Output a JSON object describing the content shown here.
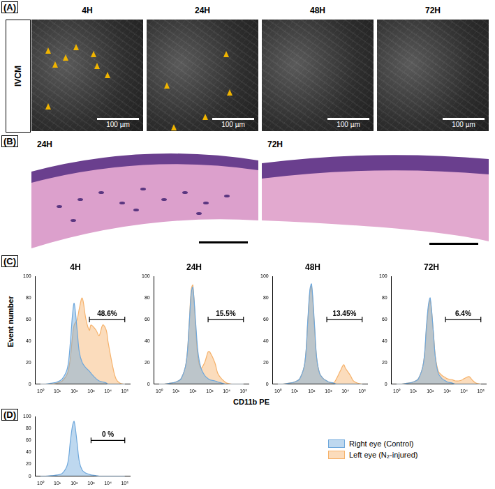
{
  "figure": {
    "panels": {
      "A": {
        "label": "(A)",
        "row_label": "IVCM",
        "columns": [
          "4H",
          "24H",
          "48H",
          "72H"
        ],
        "scale_bar": "100 µm"
      },
      "B": {
        "label": "(B)",
        "images": [
          "24H",
          "72H"
        ]
      },
      "C": {
        "label": "(C)"
      },
      "D": {
        "label": "(D)"
      }
    },
    "y_axis_label": "Event number",
    "x_axis_label": "CD11b PE"
  },
  "chart_data": [
    {
      "type": "line",
      "title": "4H",
      "log": "x",
      "grid": false,
      "x": [
        1,
        2,
        5,
        10,
        20,
        40,
        60,
        80,
        100,
        150,
        200,
        300,
        500,
        800,
        1000,
        2000,
        3000,
        5000,
        8000,
        10000,
        20000,
        30000,
        50000,
        100000
      ],
      "xlim": [
        0.5,
        200000
      ],
      "xticks": [
        {
          "value": 1,
          "label": "10⁰"
        },
        {
          "value": 10,
          "label": "10¹"
        },
        {
          "value": 100,
          "label": "10²"
        },
        {
          "value": 1000,
          "label": "10³"
        },
        {
          "value": 10000,
          "label": "10⁴"
        },
        {
          "value": 100000,
          "label": "10⁵"
        }
      ],
      "ylim": [
        0,
        100
      ],
      "yticks": [
        0,
        20,
        40,
        60,
        80,
        100
      ],
      "series": [
        {
          "name": "Right eye (Control)",
          "color": "#6fa8dc",
          "values": [
            0,
            0,
            1,
            2,
            5,
            15,
            40,
            65,
            75,
            50,
            30,
            20,
            15,
            12,
            10,
            5,
            3,
            2,
            1,
            0,
            0,
            0,
            0,
            0
          ]
        },
        {
          "name": "Left eye (N₂-injured)",
          "color": "#f6b26b",
          "values": [
            0,
            0,
            0,
            1,
            3,
            10,
            25,
            45,
            55,
            60,
            70,
            80,
            60,
            50,
            55,
            50,
            45,
            55,
            50,
            40,
            15,
            5,
            1,
            0
          ]
        }
      ],
      "gate": {
        "range": [
          800,
          100000
        ],
        "level": 60,
        "label": "48.6%"
      }
    },
    {
      "type": "line",
      "title": "24H",
      "log": "x",
      "grid": false,
      "x": [
        1,
        2,
        5,
        10,
        20,
        40,
        60,
        80,
        100,
        150,
        200,
        300,
        500,
        800,
        1000,
        2000,
        3000,
        5000,
        8000,
        10000,
        20000,
        30000,
        50000,
        100000
      ],
      "xlim": [
        0.5,
        200000
      ],
      "xticks": [
        {
          "value": 1,
          "label": "10⁰"
        },
        {
          "value": 10,
          "label": "10¹"
        },
        {
          "value": 100,
          "label": "10²"
        },
        {
          "value": 1000,
          "label": "10³"
        },
        {
          "value": 10000,
          "label": "10⁴"
        },
        {
          "value": 100000,
          "label": "10⁵"
        }
      ],
      "ylim": [
        0,
        100
      ],
      "yticks": [
        0,
        20,
        40,
        60,
        80,
        100
      ],
      "series": [
        {
          "name": "Right eye (Control)",
          "color": "#6fa8dc",
          "values": [
            0,
            0,
            1,
            2,
            5,
            20,
            55,
            85,
            90,
            55,
            30,
            15,
            8,
            5,
            4,
            3,
            2,
            1,
            0,
            0,
            0,
            0,
            0,
            0
          ]
        },
        {
          "name": "Left eye (N₂-injured)",
          "color": "#f6b26b",
          "values": [
            0,
            0,
            1,
            2,
            5,
            20,
            55,
            88,
            92,
            50,
            25,
            15,
            20,
            30,
            30,
            20,
            10,
            5,
            2,
            1,
            0,
            0,
            0,
            0
          ]
        }
      ],
      "gate": {
        "range": [
          800,
          100000
        ],
        "level": 60,
        "label": "15.5%"
      }
    },
    {
      "type": "line",
      "title": "48H",
      "log": "x",
      "grid": false,
      "x": [
        1,
        2,
        5,
        10,
        20,
        40,
        60,
        80,
        100,
        150,
        200,
        300,
        500,
        800,
        1000,
        2000,
        3000,
        5000,
        8000,
        10000,
        20000,
        30000,
        50000,
        100000
      ],
      "xlim": [
        0.5,
        200000
      ],
      "xticks": [
        {
          "value": 1,
          "label": "10⁰"
        },
        {
          "value": 10,
          "label": "10¹"
        },
        {
          "value": 100,
          "label": "10²"
        },
        {
          "value": 1000,
          "label": "10³"
        },
        {
          "value": 10000,
          "label": "10⁴"
        },
        {
          "value": 100000,
          "label": "10⁵"
        }
      ],
      "ylim": [
        0,
        100
      ],
      "yticks": [
        0,
        20,
        40,
        60,
        80,
        100
      ],
      "series": [
        {
          "name": "Right eye (Control)",
          "color": "#6fa8dc",
          "values": [
            0,
            0,
            1,
            2,
            5,
            20,
            60,
            88,
            93,
            55,
            25,
            10,
            5,
            3,
            2,
            1,
            0,
            0,
            0,
            0,
            0,
            0,
            0,
            0
          ]
        },
        {
          "name": "Left eye (N₂-injured)",
          "color": "#f6b26b",
          "values": [
            0,
            0,
            1,
            2,
            5,
            20,
            58,
            86,
            91,
            52,
            24,
            10,
            5,
            3,
            2,
            1,
            5,
            12,
            18,
            15,
            8,
            3,
            1,
            0
          ]
        }
      ],
      "gate": {
        "range": [
          800,
          100000
        ],
        "level": 60,
        "label": "13.45%"
      }
    },
    {
      "type": "line",
      "title": "72H",
      "log": "x",
      "grid": false,
      "x": [
        1,
        2,
        5,
        10,
        20,
        40,
        60,
        80,
        100,
        150,
        200,
        300,
        500,
        800,
        1000,
        2000,
        3000,
        5000,
        8000,
        10000,
        20000,
        30000,
        50000,
        100000
      ],
      "xlim": [
        0.5,
        200000
      ],
      "xticks": [
        {
          "value": 1,
          "label": "10⁰"
        },
        {
          "value": 10,
          "label": "10¹"
        },
        {
          "value": 100,
          "label": "10²"
        },
        {
          "value": 1000,
          "label": "10³"
        },
        {
          "value": 10000,
          "label": "10⁴"
        },
        {
          "value": 100000,
          "label": "10⁵"
        }
      ],
      "ylim": [
        0,
        100
      ],
      "yticks": [
        0,
        20,
        40,
        60,
        80,
        100
      ],
      "series": [
        {
          "name": "Right eye (Control)",
          "color": "#6fa8dc",
          "values": [
            0,
            0,
            1,
            2,
            5,
            20,
            55,
            75,
            80,
            50,
            25,
            10,
            5,
            3,
            2,
            1,
            0,
            0,
            0,
            0,
            0,
            0,
            0,
            0
          ]
        },
        {
          "name": "Left eye (N₂-injured)",
          "color": "#f6b26b",
          "values": [
            0,
            0,
            1,
            2,
            5,
            20,
            52,
            72,
            78,
            50,
            26,
            12,
            8,
            6,
            5,
            4,
            3,
            3,
            4,
            5,
            7,
            4,
            1,
            0
          ]
        }
      ],
      "gate": {
        "range": [
          800,
          100000
        ],
        "level": 60,
        "label": "6.4%"
      }
    },
    {
      "type": "line",
      "log": "x",
      "grid": false,
      "x": [
        1,
        2,
        5,
        10,
        20,
        40,
        60,
        80,
        100,
        150,
        200,
        300,
        500,
        800,
        1000,
        2000,
        3000,
        5000,
        8000,
        10000,
        20000,
        30000,
        50000,
        100000
      ],
      "xlim": [
        0.5,
        200000
      ],
      "xticks": [
        {
          "value": 1,
          "label": "10⁰"
        },
        {
          "value": 10,
          "label": "10¹"
        },
        {
          "value": 100,
          "label": "10²"
        },
        {
          "value": 1000,
          "label": "10³"
        },
        {
          "value": 10000,
          "label": "10⁴"
        },
        {
          "value": 100000,
          "label": "10⁵"
        }
      ],
      "ylim": [
        0,
        100
      ],
      "yticks": [
        0,
        20,
        40,
        60,
        80,
        100
      ],
      "series": [
        {
          "name": "Right eye (Control)",
          "color": "#6fa8dc",
          "values": [
            0,
            0,
            1,
            2,
            5,
            20,
            60,
            85,
            92,
            55,
            25,
            10,
            5,
            3,
            2,
            1,
            0,
            0,
            0,
            0,
            0,
            0,
            0,
            0
          ]
        }
      ],
      "gate": {
        "range": [
          1000,
          100000
        ],
        "level": 60,
        "label": "0 %"
      }
    }
  ]
}
